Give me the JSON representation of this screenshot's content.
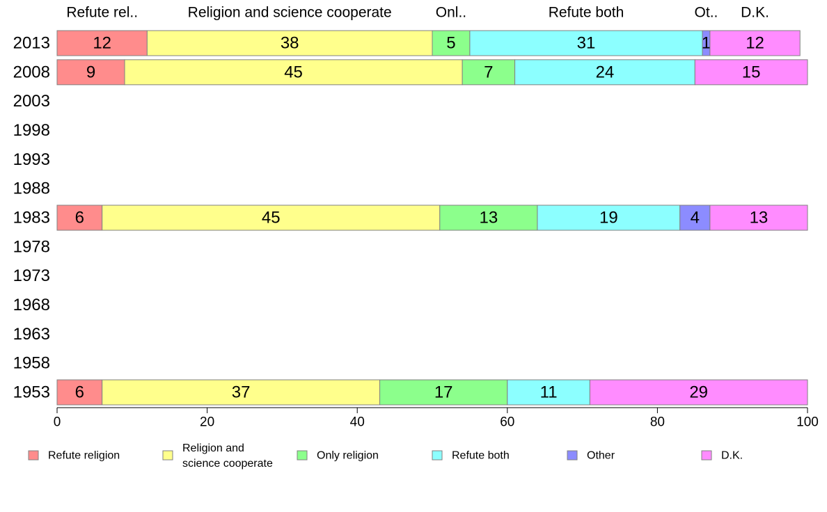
{
  "chart_data": {
    "type": "bar",
    "orientation": "horizontal",
    "stacked": true,
    "xlim": [
      0,
      100
    ],
    "x_ticks": [
      0,
      20,
      40,
      60,
      80,
      100
    ],
    "categories": [
      "2013",
      "2008",
      "2003",
      "1998",
      "1993",
      "1988",
      "1983",
      "1978",
      "1973",
      "1968",
      "1963",
      "1958",
      "1953"
    ],
    "top_labels": [
      "Refute rel..",
      "Religion and science cooperate",
      "Onl..",
      "Refute both",
      "Ot..",
      "D.K."
    ],
    "series": [
      {
        "name": "Refute religion",
        "color": "#ff8c8c",
        "values": [
          12,
          9,
          null,
          null,
          null,
          null,
          6,
          null,
          null,
          null,
          null,
          null,
          6
        ]
      },
      {
        "name": "Religion and science cooperate",
        "color": "#ffff8c",
        "values": [
          38,
          45,
          null,
          null,
          null,
          null,
          45,
          null,
          null,
          null,
          null,
          null,
          37
        ]
      },
      {
        "name": "Only religion",
        "color": "#8cff8c",
        "values": [
          5,
          7,
          null,
          null,
          null,
          null,
          13,
          null,
          null,
          null,
          null,
          null,
          17
        ]
      },
      {
        "name": "Refute both",
        "color": "#8cffff",
        "values": [
          31,
          24,
          null,
          null,
          null,
          null,
          19,
          null,
          null,
          null,
          null,
          null,
          11
        ]
      },
      {
        "name": "Other",
        "color": "#8c8cff",
        "values": [
          1,
          0,
          null,
          null,
          null,
          null,
          4,
          null,
          null,
          null,
          null,
          null,
          0
        ]
      },
      {
        "name": "D.K.",
        "color": "#ff8cff",
        "values": [
          12,
          15,
          null,
          null,
          null,
          null,
          13,
          null,
          null,
          null,
          null,
          null,
          29
        ]
      }
    ],
    "legend": [
      {
        "label": "Refute religion",
        "lines": [
          "Refute religion"
        ]
      },
      {
        "label": "Religion and science cooperate",
        "lines": [
          "Religion and",
          "science cooperate"
        ]
      },
      {
        "label": "Only religion",
        "lines": [
          "Only religion"
        ]
      },
      {
        "label": "Refute both",
        "lines": [
          "Refute both"
        ]
      },
      {
        "label": "Other",
        "lines": [
          "Other"
        ]
      },
      {
        "label": "D.K.",
        "lines": [
          "D.K."
        ]
      }
    ],
    "legend_position": "bottom"
  }
}
